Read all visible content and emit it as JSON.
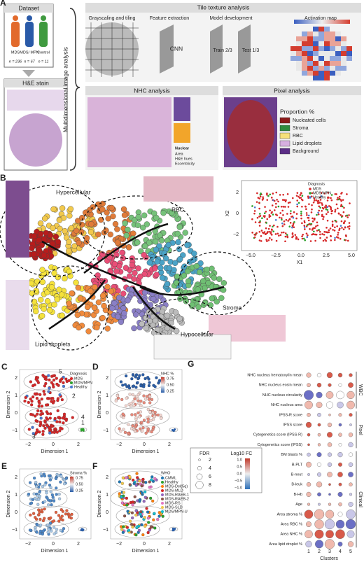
{
  "panelA": {
    "label": "A",
    "dataset": {
      "title": "Dataset",
      "groups": [
        {
          "name": "MDS",
          "n": "n = 236"
        },
        {
          "name": "MDS/ MPN",
          "n": "n = 67"
        },
        {
          "name": "Control",
          "n": "n = 11"
        }
      ]
    },
    "stain": "H&E stain",
    "brace_label": "Multidimensional image analysis",
    "tile": {
      "title": "Tile texture analysis",
      "steps": [
        "Grayscaling and tiling",
        "Feature extraction",
        "Model development",
        "Activation map"
      ],
      "cnn": "CNN",
      "train": "Train 2/3",
      "test": "Test 1/3"
    },
    "nhc": {
      "title": "NHC analysis",
      "nuclear": "Nuclear",
      "features": [
        "Area",
        "H&E hues",
        "Eccentricity"
      ]
    },
    "pixel": {
      "title": "Pixel analysis",
      "legend_title": "Proportion %",
      "legend": [
        "Nucleated cells",
        "Stroma",
        "RBC",
        "Lipid droplets",
        "Background"
      ]
    }
  },
  "panelB": {
    "label": "B",
    "regions": [
      "Hypercellular",
      "RBC",
      "Stroma",
      "Hypocellular",
      "Lipid droplets"
    ],
    "inset": {
      "legend_title": "Diagnosis",
      "legend": [
        "MDS",
        "MDS/MPN",
        "Healthy"
      ],
      "xticks": [
        "−5.0",
        "−2.5",
        "0.0",
        "2.5",
        "5.0"
      ],
      "yticks": [
        "2",
        "0",
        "−2"
      ],
      "xlabel": "X1",
      "ylabel": "X2"
    }
  },
  "umap": {
    "xlabel": "Dimension 1",
    "ylabel": "Dimension 2",
    "xticks": [
      "−2",
      "0",
      "2"
    ],
    "yticks": [
      "2",
      "1",
      "0",
      "−1"
    ],
    "panels": [
      {
        "label": "C",
        "legend_title": "Diagnosis",
        "legend": [
          "MDS",
          "MDS/MPN",
          "Healthy"
        ],
        "clusters": [
          "5",
          "2",
          "4",
          "3",
          "1"
        ]
      },
      {
        "label": "D",
        "legend_title": "NHC %",
        "scale": [
          "0.75",
          "0.50",
          "0.25"
        ]
      },
      {
        "label": "E",
        "legend_title": "Stroma %",
        "scale": [
          "0.75",
          "0.50",
          "0.25"
        ]
      },
      {
        "label": "F",
        "legend_title": "WHO",
        "legend": [
          "CMML",
          "Healthy",
          "MDS-Del(5q)",
          "MDS-MLD",
          "MDS-RAEB-1",
          "MDS-RAEB-2",
          "MDS-RS",
          "MDS-SLD",
          "MDS/MPN-U"
        ]
      }
    ]
  },
  "panelG": {
    "label": "G",
    "rows": [
      "NHC nucleus hematoxylin mean",
      "NHC nucleus eosin mean",
      "NHC nucleus circularity",
      "NHC nucleus area",
      "IPSS-R score",
      "IPSS score",
      "Cytogenetics score (IPSS-R)",
      "Cytogenetics score (IPSS)",
      "BM blasts %",
      "B-PLT",
      "B-neut",
      "B-leuk",
      "B-Hb",
      "Age",
      "Area stroma %",
      "Area RBC %",
      "Area NHC %",
      "Area lipid droplet %"
    ],
    "groups": [
      "WBC",
      "Pixel",
      "Clinical"
    ],
    "columns": [
      "1",
      "2",
      "3",
      "4",
      "5"
    ],
    "xlabel": "Clusters",
    "fdr_title": "FDR",
    "fdr": [
      "2",
      "4",
      "6",
      "8"
    ],
    "fc_title": "Log10 FC",
    "fc": [
      "1.0",
      "0.5",
      "0.0",
      "−0.5",
      "−1.0"
    ]
  }
}
